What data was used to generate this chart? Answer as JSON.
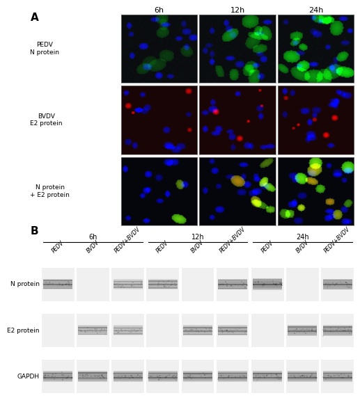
{
  "panel_A_label": "A",
  "panel_B_label": "B",
  "time_points": [
    "6h",
    "12h",
    "24h"
  ],
  "row_labels": [
    [
      "PEDV",
      "N protein"
    ],
    [
      "BVDV",
      "E2 protein"
    ],
    [
      "N protein",
      "+ E2 protein"
    ]
  ],
  "blot_labels": [
    "N protein",
    "E2 protein",
    "GAPDH"
  ],
  "col_groups": [
    {
      "label": "6h",
      "lanes": [
        "PEDV",
        "BVDV",
        "PEDV+BVDV"
      ]
    },
    {
      "label": "12h",
      "lanes": [
        "PEDV",
        "BVDV",
        "PEDV+BVDV"
      ]
    },
    {
      "label": "24h",
      "lanes": [
        "PEDV",
        "BVDV",
        "PEDV+BVDV"
      ]
    }
  ],
  "background_color": "#ffffff",
  "img_bg": "#111111",
  "micro_row_colors": [
    [
      "#003300",
      "#004400",
      "#006600"
    ],
    [
      "#1a0000",
      "#1a0000",
      "#0a0022"
    ],
    [
      "#000011",
      "#060011",
      "#050010"
    ]
  ]
}
